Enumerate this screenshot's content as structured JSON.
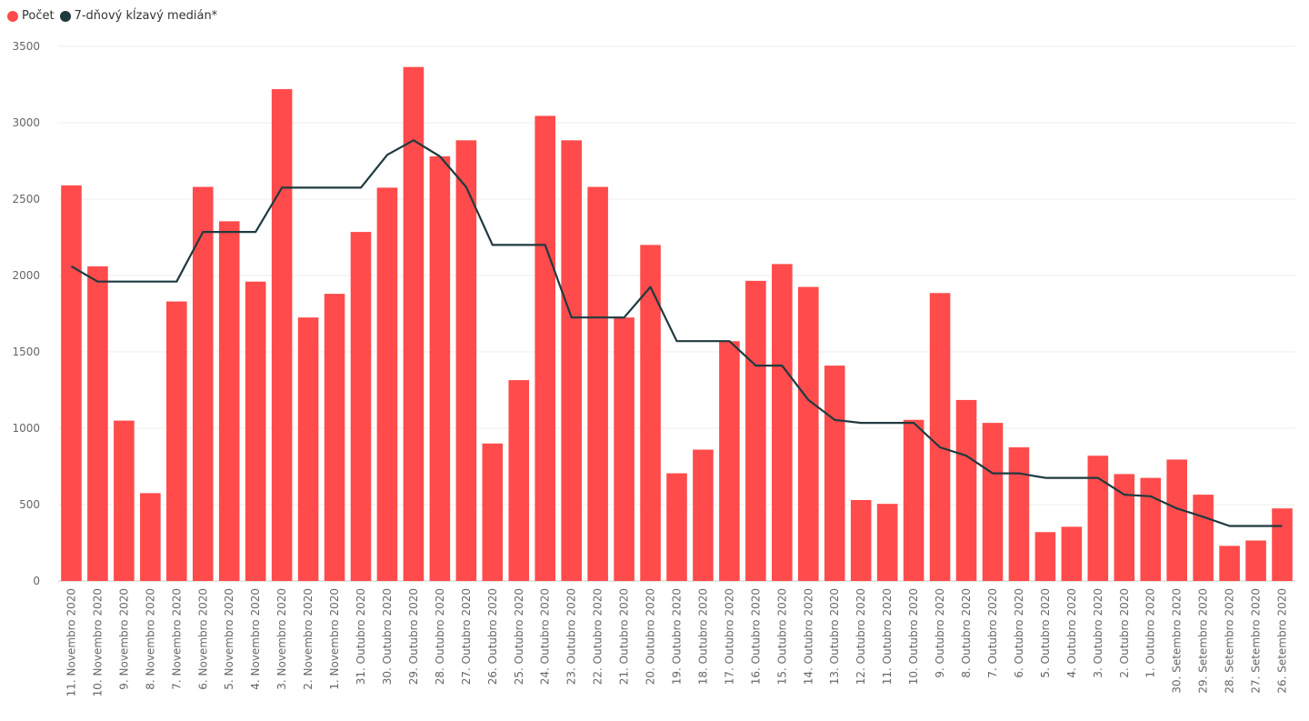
{
  "chart_data": {
    "type": "bar",
    "title": "",
    "xlabel": "",
    "ylabel": "",
    "ylim": [
      0,
      3500
    ],
    "yticks": [
      0,
      500,
      1000,
      1500,
      2000,
      2500,
      3000,
      3500
    ],
    "grid": true,
    "legend_position": "top-left",
    "categories": [
      "11. Novembro 2020",
      "10. Novembro 2020",
      "9. Novembro 2020",
      "8. Novembro 2020",
      "7. Novembro 2020",
      "6. Novembro 2020",
      "5. Novembro 2020",
      "4. Novembro 2020",
      "3. Novembro 2020",
      "2. Novembro 2020",
      "1. Novembro 2020",
      "31. Outubro 2020",
      "30. Outubro 2020",
      "29. Outubro 2020",
      "28. Outubro 2020",
      "27. Outubro 2020",
      "26. Outubro 2020",
      "25. Outubro 2020",
      "24. Outubro 2020",
      "23. Outubro 2020",
      "22. Outubro 2020",
      "21. Outubro 2020",
      "20. Outubro 2020",
      "19. Outubro 2020",
      "18. Outubro 2020",
      "17. Outubro 2020",
      "16. Outubro 2020",
      "15. Outubro 2020",
      "14. Outubro 2020",
      "13. Outubro 2020",
      "12. Outubro 2020",
      "11. Outubro 2020",
      "10. Outubro 2020",
      "9. Outubro 2020",
      "8. Outubro 2020",
      "7. Outubro 2020",
      "6. Outubro 2020",
      "5. Outubro 2020",
      "4. Outubro 2020",
      "3. Outubro 2020",
      "2. Outubro 2020",
      "1. Outubro 2020",
      "30. Setembro 2020",
      "29. Setembro 2020",
      "28. Setembro 2020",
      "27. Setembro 2020",
      "26. Setembro 2020"
    ],
    "series": [
      {
        "name": "Počet",
        "type": "bar",
        "color": "#FF4B4B",
        "values": [
          2590,
          2060,
          1050,
          575,
          1830,
          2580,
          2355,
          1960,
          3220,
          1725,
          1880,
          2285,
          2575,
          3365,
          2780,
          2885,
          900,
          1315,
          3045,
          2885,
          2580,
          1725,
          2200,
          705,
          860,
          1570,
          1965,
          2075,
          1925,
          1410,
          530,
          505,
          1055,
          1885,
          1185,
          1035,
          875,
          320,
          355,
          820,
          700,
          675,
          795,
          565,
          230,
          265,
          475
        ]
      },
      {
        "name": "7-dňový kĺzavý medián*",
        "type": "line",
        "color": "#1F3A3F",
        "values": [
          2060,
          1960,
          1960,
          1960,
          1960,
          2285,
          2285,
          2285,
          2575,
          2575,
          2575,
          2575,
          2790,
          2885,
          2780,
          2580,
          2200,
          2200,
          2200,
          1725,
          1725,
          1725,
          1925,
          1570,
          1570,
          1570,
          1410,
          1410,
          1185,
          1055,
          1035,
          1035,
          1035,
          875,
          820,
          705,
          705,
          675,
          675,
          675,
          565,
          555,
          475,
          420,
          360,
          360,
          360
        ]
      }
    ]
  }
}
